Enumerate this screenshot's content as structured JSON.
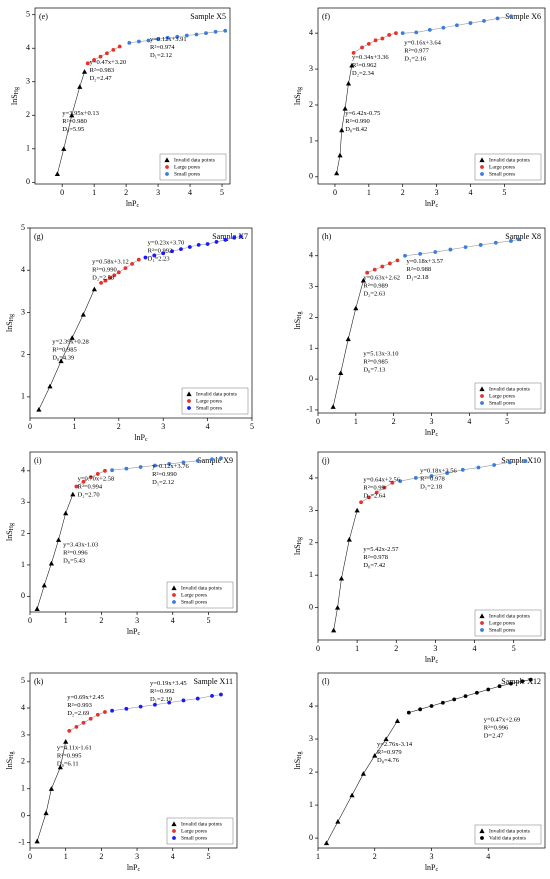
{
  "chart_data": [
    {
      "type": "scatter",
      "label": "(e)",
      "sample": "Sample X5",
      "xlabel": {
        "main": "lnP",
        "sub": "c"
      },
      "ylabel": {
        "main": "lnS",
        "sub": "Hg"
      },
      "xlim": [
        -0.85,
        5.25
      ],
      "ylim": [
        -0.05,
        5.2
      ],
      "xticks": [
        0,
        1,
        2,
        3,
        4,
        5
      ],
      "yticks": [
        0,
        1,
        2,
        3,
        4,
        5
      ],
      "series": [
        {
          "name": "Invalid data points",
          "color": "#000000",
          "marker": "triangle",
          "x": [
            -0.15,
            0.05,
            0.3,
            0.55,
            0.7
          ],
          "y": [
            0.25,
            1.0,
            2.0,
            2.85,
            3.3
          ]
        },
        {
          "name": "Large pores",
          "color": "#e8312a",
          "marker": "circle",
          "x": [
            0.8,
            1.0,
            1.2,
            1.4,
            1.6,
            1.8
          ],
          "y": [
            3.55,
            3.65,
            3.75,
            3.85,
            3.95,
            4.05
          ]
        },
        {
          "name": "Small pores",
          "color": "#3b7ddd",
          "marker": "circle",
          "x": [
            2.1,
            2.4,
            2.7,
            3.0,
            3.3,
            3.6,
            3.9,
            4.2,
            4.5,
            4.8,
            5.1
          ],
          "y": [
            4.16,
            4.2,
            4.23,
            4.27,
            4.31,
            4.34,
            4.38,
            4.41,
            4.45,
            4.49,
            4.52
          ]
        }
      ],
      "annotations": [
        {
          "lines": [
            "y=0.47x+3.20",
            "R²=0.983",
            "D₂=2.47"
          ]
        },
        {
          "lines": [
            "y=0.12x+3.91",
            "R²=0.974",
            "D₁=2.12"
          ]
        },
        {
          "lines": [
            "y=3.95x+0.13",
            "R²=0.980",
            "D₀=5.95"
          ]
        }
      ]
    },
    {
      "type": "scatter",
      "label": "(f)",
      "sample": "Sample X6",
      "xlabel": {
        "main": "lnP",
        "sub": "c"
      },
      "ylabel": {
        "main": "lnS",
        "sub": "Hg"
      },
      "xlim": [
        -0.5,
        6.2
      ],
      "ylim": [
        -0.2,
        4.7
      ],
      "xticks": [
        0,
        1,
        2,
        3,
        4,
        5
      ],
      "yticks": [
        0,
        1,
        2,
        3,
        4
      ],
      "series": [
        {
          "name": "Invalid data points",
          "color": "#000000",
          "marker": "triangle",
          "x": [
            0.05,
            0.15,
            0.2,
            0.3,
            0.4,
            0.5
          ],
          "y": [
            0.1,
            0.6,
            1.3,
            1.9,
            2.6,
            3.1
          ]
        },
        {
          "name": "Large pores",
          "color": "#e8312a",
          "marker": "circle",
          "x": [
            0.55,
            0.8,
            1.0,
            1.2,
            1.4,
            1.6,
            1.8
          ],
          "y": [
            3.45,
            3.6,
            3.7,
            3.8,
            3.85,
            3.95,
            4.0
          ]
        },
        {
          "name": "Small pores",
          "color": "#3b7ddd",
          "marker": "circle",
          "x": [
            2.0,
            2.4,
            2.8,
            3.2,
            3.6,
            4.0,
            4.4,
            4.8,
            5.2
          ],
          "y": [
            4.0,
            4.02,
            4.09,
            4.15,
            4.22,
            4.28,
            4.34,
            4.41,
            4.47
          ]
        }
      ],
      "annotations": [
        {
          "lines": [
            "y=0.34x+3.36",
            "R²=0.962",
            "D₂=2.34"
          ]
        },
        {
          "lines": [
            "y=0.16x+3.64",
            "R²=0.977",
            "D₁=2.16"
          ]
        },
        {
          "lines": [
            "y=6.42x-0.75",
            "R²=0.990",
            "D₀=8.42"
          ]
        }
      ]
    },
    {
      "type": "scatter",
      "label": "(g)",
      "sample": "Sample X7",
      "xlabel": {
        "main": "lnP",
        "sub": "c"
      },
      "ylabel": {
        "main": "lnS",
        "sub": "Hg"
      },
      "xlim": [
        0,
        5
      ],
      "ylim": [
        0.5,
        5
      ],
      "xticks": [
        0,
        1,
        2,
        3,
        4,
        5
      ],
      "yticks": [
        1,
        2,
        3,
        4,
        5
      ],
      "series": [
        {
          "name": "Invalid data points",
          "color": "#000000",
          "marker": "triangle",
          "x": [
            0.2,
            0.45,
            0.7,
            0.95,
            1.2,
            1.45
          ],
          "y": [
            0.7,
            1.25,
            1.85,
            2.4,
            2.95,
            3.55
          ]
        },
        {
          "name": "Large pores",
          "color": "#e8312a",
          "marker": "circle",
          "x": [
            1.6,
            1.7,
            1.8,
            1.9,
            2.0,
            2.15,
            2.3,
            2.45
          ],
          "y": [
            3.7,
            3.75,
            3.82,
            3.88,
            3.95,
            4.05,
            4.15,
            4.25
          ]
        },
        {
          "name": "Small pores",
          "color": "#1a1aff",
          "marker": "circle",
          "x": [
            2.6,
            2.8,
            3.0,
            3.2,
            3.4,
            3.6,
            3.8,
            4.0,
            4.2,
            4.4,
            4.6,
            4.75
          ],
          "y": [
            4.3,
            4.35,
            4.4,
            4.45,
            4.5,
            4.55,
            4.6,
            4.62,
            4.67,
            4.72,
            4.77,
            4.8
          ]
        }
      ],
      "annotations": [
        {
          "lines": [
            "y=0.58x+3.12",
            "R²=0.990",
            "D₂=2.58"
          ]
        },
        {
          "lines": [
            "y=0.23x+3.70",
            "R²=0.992",
            "D₁=2.23"
          ]
        },
        {
          "lines": [
            "y=2.39x+0.28",
            "R²=0.985",
            "D₀=4.39"
          ]
        }
      ]
    },
    {
      "type": "scatter",
      "label": "(h)",
      "sample": "Sample X8",
      "xlabel": {
        "main": "lnP",
        "sub": "c"
      },
      "ylabel": {
        "main": "lnS",
        "sub": "Hg"
      },
      "xlim": [
        0,
        6
      ],
      "ylim": [
        -1.1,
        4.9
      ],
      "xticks": [
        0,
        1,
        2,
        3,
        4,
        5
      ],
      "yticks": [
        -1,
        0,
        1,
        2,
        3,
        4
      ],
      "series": [
        {
          "name": "Invalid data points",
          "color": "#000000",
          "marker": "triangle",
          "x": [
            0.4,
            0.6,
            0.8,
            1.0,
            1.2
          ],
          "y": [
            -0.9,
            0.2,
            1.3,
            2.3,
            3.2
          ]
        },
        {
          "name": "Large pores",
          "color": "#e8312a",
          "marker": "circle",
          "x": [
            1.3,
            1.5,
            1.7,
            1.9,
            2.1
          ],
          "y": [
            3.45,
            3.55,
            3.65,
            3.75,
            3.85
          ]
        },
        {
          "name": "Small pores",
          "color": "#3b7ddd",
          "marker": "circle",
          "x": [
            2.3,
            2.7,
            3.1,
            3.5,
            3.9,
            4.3,
            4.7,
            5.1,
            5.3
          ],
          "y": [
            4.0,
            4.06,
            4.12,
            4.2,
            4.28,
            4.35,
            4.42,
            4.48,
            4.53
          ]
        }
      ],
      "annotations": [
        {
          "lines": [
            "y=0.63x+2.62",
            "R²=0.989",
            "D₂=2.63"
          ]
        },
        {
          "lines": [
            "y=0.18x+3.57",
            "R²=0.988",
            "D₁=2.18"
          ]
        },
        {
          "lines": [
            "y=5.13x-3.10",
            "R²=0.985",
            "D₀=7.13"
          ]
        }
      ]
    },
    {
      "type": "scatter",
      "label": "(i)",
      "sample": "Sample X9",
      "xlabel": {
        "main": "lnP",
        "sub": "c"
      },
      "ylabel": {
        "main": "lnS",
        "sub": "Hg"
      },
      "xlim": [
        0,
        5.8
      ],
      "ylim": [
        -0.5,
        4.6
      ],
      "xticks": [
        0,
        1,
        2,
        3,
        4,
        5
      ],
      "yticks": [
        0,
        1,
        2,
        3,
        4
      ],
      "series": [
        {
          "name": "Invalid data points",
          "color": "#000000",
          "marker": "triangle",
          "x": [
            0.2,
            0.4,
            0.6,
            0.8,
            1.0,
            1.2
          ],
          "y": [
            -0.4,
            0.35,
            1.05,
            1.8,
            2.65,
            3.25
          ]
        },
        {
          "name": "Large pores",
          "color": "#e8312a",
          "marker": "circle",
          "x": [
            1.3,
            1.5,
            1.7,
            1.9,
            2.1
          ],
          "y": [
            3.5,
            3.65,
            3.8,
            3.9,
            4.0
          ]
        },
        {
          "name": "Small pores",
          "color": "#3b7ddd",
          "marker": "circle",
          "x": [
            2.3,
            2.7,
            3.1,
            3.5,
            3.9,
            4.3,
            4.7,
            5.1,
            5.35
          ],
          "y": [
            4.02,
            4.07,
            4.12,
            4.17,
            4.22,
            4.27,
            4.32,
            4.37,
            4.4
          ]
        }
      ],
      "annotations": [
        {
          "lines": [
            "y=0.70x+2.58",
            "R²=0.994",
            "D₂=2.70"
          ]
        },
        {
          "lines": [
            "y=0.12x+3.76",
            "R²=0.990",
            "D₁=2.12"
          ]
        },
        {
          "lines": [
            "y=3.43x-1.03",
            "R²=0.996",
            "D₀=5.43"
          ]
        }
      ]
    },
    {
      "type": "scatter",
      "label": "(j)",
      "sample": "Sample X10",
      "xlabel": {
        "main": "lnP",
        "sub": "c"
      },
      "ylabel": {
        "main": "lnS",
        "sub": "Hg"
      },
      "xlim": [
        0,
        5.8
      ],
      "ylim": [
        -1,
        4.8
      ],
      "xticks": [
        0,
        1,
        2,
        3,
        4,
        5
      ],
      "yticks": [
        0,
        1,
        2,
        3,
        4
      ],
      "series": [
        {
          "name": "Invalid data points",
          "color": "#000000",
          "marker": "triangle",
          "x": [
            0.4,
            0.5,
            0.6,
            0.8,
            1.0
          ],
          "y": [
            -0.7,
            0.0,
            0.9,
            2.1,
            3.0
          ]
        },
        {
          "name": "Large pores",
          "color": "#e8312a",
          "marker": "circle",
          "x": [
            1.1,
            1.3,
            1.5,
            1.7,
            1.9
          ],
          "y": [
            3.25,
            3.4,
            3.55,
            3.7,
            3.85
          ]
        },
        {
          "name": "Small pores",
          "color": "#3b7ddd",
          "marker": "circle",
          "x": [
            2.1,
            2.5,
            2.9,
            3.3,
            3.7,
            4.1,
            4.5,
            4.9,
            5.3
          ],
          "y": [
            3.9,
            4.0,
            4.06,
            4.15,
            4.25,
            4.32,
            4.4,
            4.48,
            4.52
          ]
        }
      ],
      "annotations": [
        {
          "lines": [
            "y=0.64x+2.56",
            "R²=0.99",
            "D₂=2.64"
          ]
        },
        {
          "lines": [
            "y=0.18x+3.56",
            "R²=0.978",
            "D₁=2.18"
          ]
        },
        {
          "lines": [
            "y=5.42x-2.57",
            "R²=0.978",
            "D₀=7.42"
          ]
        }
      ]
    },
    {
      "type": "scatter",
      "label": "(k)",
      "sample": "Sample X11",
      "xlabel": {
        "main": "lnP",
        "sub": "c"
      },
      "ylabel": {
        "main": "lnS",
        "sub": "Hg"
      },
      "xlim": [
        0,
        5.8
      ],
      "ylim": [
        -1.2,
        5.3
      ],
      "xticks": [
        0,
        1,
        2,
        3,
        4,
        5
      ],
      "yticks": [
        -1,
        0,
        1,
        2,
        3,
        4,
        5
      ],
      "series": [
        {
          "name": "Invalid data points",
          "color": "#000000",
          "marker": "triangle",
          "x": [
            0.2,
            0.45,
            0.6,
            0.85,
            1.0
          ],
          "y": [
            -0.95,
            0.1,
            1.0,
            1.8,
            2.75
          ]
        },
        {
          "name": "Large pores",
          "color": "#e8312a",
          "marker": "circle",
          "x": [
            1.1,
            1.3,
            1.5,
            1.7,
            1.9,
            2.1
          ],
          "y": [
            3.15,
            3.3,
            3.45,
            3.6,
            3.75,
            3.85
          ]
        },
        {
          "name": "Small pores",
          "color": "#1a1aff",
          "marker": "circle",
          "x": [
            2.3,
            2.7,
            3.1,
            3.5,
            3.9,
            4.3,
            4.7,
            5.1,
            5.35
          ],
          "y": [
            3.9,
            3.97,
            4.05,
            4.12,
            4.2,
            4.28,
            4.35,
            4.45,
            4.5
          ]
        }
      ],
      "annotations": [
        {
          "lines": [
            "y=0.69x+2.45",
            "R²=0.993",
            "D₂=2.69"
          ]
        },
        {
          "lines": [
            "y=0.19x+3.45",
            "R²=0.992",
            "D₁=2.19"
          ]
        },
        {
          "lines": [
            "y=4.11x-1.61",
            "R²=0.995",
            "D₀=6.11"
          ]
        }
      ]
    },
    {
      "type": "scatter",
      "label": "(l)",
      "sample": "Sample X12",
      "xlabel": {
        "main": "lnP",
        "sub": "c"
      },
      "ylabel": {
        "main": "lnS",
        "sub": "Hg"
      },
      "xlim": [
        1,
        5
      ],
      "ylim": [
        -0.3,
        5
      ],
      "xticks": [
        1,
        2,
        3,
        4
      ],
      "yticks": [
        0,
        1,
        2,
        3,
        4
      ],
      "series": [
        {
          "name": "Invalid data points",
          "color": "#000000",
          "marker": "triangle",
          "x": [
            1.15,
            1.35,
            1.6,
            1.8,
            2.0,
            2.2,
            2.4
          ],
          "y": [
            -0.15,
            0.5,
            1.3,
            1.95,
            2.5,
            3.0,
            3.55
          ]
        },
        {
          "name": "Valid data points",
          "color": "#000000",
          "marker": "circle",
          "x": [
            2.6,
            2.8,
            3.0,
            3.2,
            3.4,
            3.6,
            3.8,
            4.0,
            4.2,
            4.4,
            4.6,
            4.75
          ],
          "y": [
            3.8,
            3.9,
            4.0,
            4.1,
            4.2,
            4.3,
            4.4,
            4.5,
            4.6,
            4.68,
            4.75,
            4.8
          ]
        }
      ],
      "annotations": [
        {
          "lines": [
            "y=0.47x+2.69",
            "R²=0.996",
            "D=2.47"
          ]
        },
        {
          "lines": [
            "y=2.76x-3.14",
            "R²=0.979",
            "D₀=4.76"
          ]
        }
      ]
    }
  ]
}
